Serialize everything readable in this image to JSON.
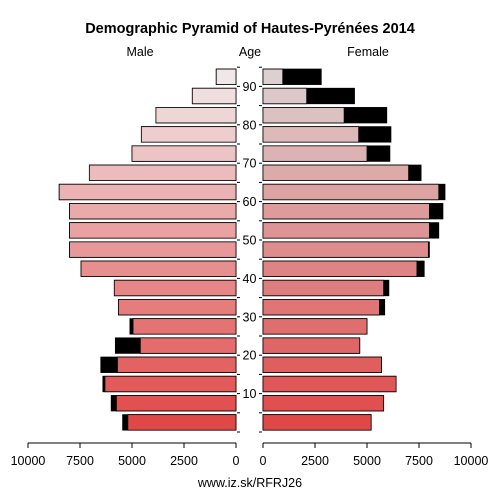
{
  "chart_data": {
    "type": "bar",
    "title": "Demographic Pyramid of Hautes-Pyrénées 2014",
    "left_label": "Male",
    "center_label": "Age",
    "right_label": "Female",
    "source": "www.iz.sk/RFRJ26",
    "age_ticks": [
      "10",
      "20",
      "30",
      "40",
      "50",
      "60",
      "70",
      "80",
      "90"
    ],
    "x_ticks_left": [
      "10000",
      "7500",
      "5000",
      "2500",
      "0"
    ],
    "x_ticks_right": [
      "0",
      "2500",
      "5000",
      "7500",
      "10000"
    ],
    "xlim": [
      0,
      10000
    ],
    "age_groups": [
      "0-4",
      "5-9",
      "10-14",
      "15-19",
      "20-24",
      "25-29",
      "30-34",
      "35-39",
      "40-44",
      "45-49",
      "50-54",
      "55-59",
      "60-64",
      "65-69",
      "70-74",
      "75-79",
      "80-84",
      "85-89",
      "90+"
    ],
    "male_total": [
      5450,
      6000,
      6400,
      6500,
      5800,
      5100,
      5650,
      5850,
      7450,
      8000,
      8000,
      8000,
      8500,
      7050,
      5000,
      4550,
      3850,
      2100,
      950
    ],
    "male_base": [
      5200,
      5750,
      6300,
      5700,
      4600,
      4950,
      5650,
      5850,
      7450,
      8000,
      8000,
      8000,
      8500,
      7050,
      5000,
      4550,
      3850,
      2100,
      950
    ],
    "female_total": [
      5200,
      5800,
      6400,
      5700,
      4650,
      5000,
      5850,
      6050,
      7750,
      8000,
      8450,
      8650,
      8750,
      7600,
      6100,
      6150,
      5950,
      4400,
      2800
    ],
    "female_base": [
      5200,
      5800,
      6400,
      5700,
      4650,
      5000,
      5600,
      5800,
      7400,
      7950,
      8000,
      8000,
      8450,
      7000,
      5000,
      4600,
      3900,
      2100,
      950
    ],
    "colors": {
      "excess": "#000000",
      "outline": "#000000",
      "male_bottom": "#e04848",
      "male_top": "#f0e8e8",
      "female_bottom": "#e04848",
      "female_top": "#dcd0d0"
    }
  }
}
